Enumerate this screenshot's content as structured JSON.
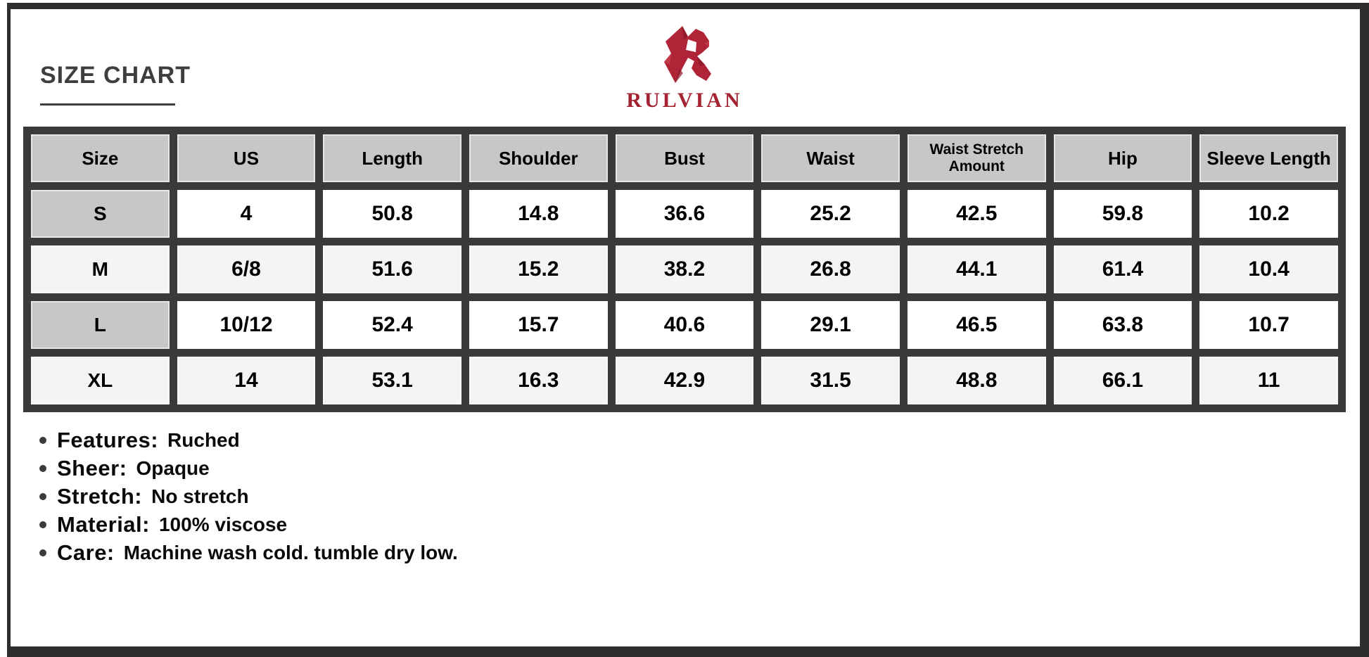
{
  "page": {
    "title": "SIZE CHART",
    "brand": "RULVIAN"
  },
  "table": {
    "columns": [
      "Size",
      "US",
      "Length",
      "Shoulder",
      "Bust",
      "Waist",
      "Waist Stretch Amount",
      "Hip",
      "Sleeve Length"
    ],
    "rows": [
      {
        "size": "S",
        "values": [
          "4",
          "50.8",
          "14.8",
          "36.6",
          "25.2",
          "42.5",
          "59.8",
          "10.2"
        ]
      },
      {
        "size": "M",
        "values": [
          "6/8",
          "51.6",
          "15.2",
          "38.2",
          "26.8",
          "44.1",
          "61.4",
          "10.4"
        ]
      },
      {
        "size": "L",
        "values": [
          "10/12",
          "52.4",
          "15.7",
          "40.6",
          "29.1",
          "46.5",
          "63.8",
          "10.7"
        ]
      },
      {
        "size": "XL",
        "values": [
          "14",
          "53.1",
          "16.3",
          "42.9",
          "31.5",
          "48.8",
          "66.1",
          "11"
        ]
      }
    ]
  },
  "details": [
    {
      "label": "Features:",
      "value": "Ruched"
    },
    {
      "label": "Sheer:",
      "value": "Opaque"
    },
    {
      "label": "Stretch:",
      "value": "No stretch"
    },
    {
      "label": "Material:",
      "value": "100% viscose"
    },
    {
      "label": "Care:",
      "value": "Machine wash cold. tumble dry low."
    }
  ],
  "colors": {
    "accent_red": "#a92433",
    "grid_dark": "#3a3a3a",
    "frame_dark": "#2e2e2e",
    "header_gray": "#c7c7c7",
    "alt_row_gray": "#f4f4f4",
    "title_gray": "#3e3e3e"
  }
}
